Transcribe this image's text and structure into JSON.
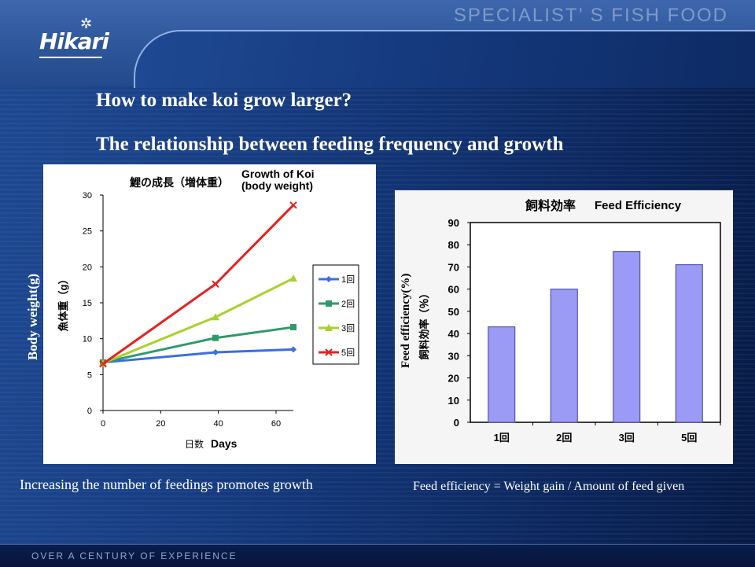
{
  "header": {
    "brand": "Hikari",
    "tagline": "SPECIALIST’ S FISH FOOD"
  },
  "titles": {
    "question": "How to make koi grow larger?",
    "subtitle": "The relationship between feeding frequency and growth"
  },
  "captions": {
    "left": "Increasing the number of feedings promotes growth",
    "right": "Feed efficiency = Weight gain / Amount of feed given"
  },
  "footer": {
    "text": "OVER A CENTURY OF EXPERIENCE"
  },
  "side_labels": {
    "left_en": "Body weight(g)",
    "right_en": "Feed efficiency(%)"
  },
  "colors": {
    "series": [
      "#3a6fe0",
      "#2e9a6b",
      "#a8d12a",
      "#e82020"
    ],
    "bar_fill": "#9b9bf5",
    "bar_stroke": "#4040a0"
  },
  "chart_data": [
    {
      "type": "line",
      "title": "鯉の成長（増体重）",
      "title_en_line1": "Growth of Koi",
      "title_en_line2": "(body weight)",
      "xlabel": "日数",
      "xlabel_en": "Days",
      "ylabel": "魚体重（g）",
      "xlim": [
        0,
        66
      ],
      "ylim": [
        0,
        30
      ],
      "xticks": [
        "0",
        "20",
        "40",
        "60"
      ],
      "yticks": [
        "0",
        "5",
        "10",
        "15",
        "20",
        "25",
        "30"
      ],
      "grid": false,
      "legend_position": "right",
      "series": [
        {
          "name": "1回",
          "x": [
            0,
            39,
            66
          ],
          "y": [
            6.7,
            8.1,
            8.5
          ]
        },
        {
          "name": "2回",
          "x": [
            0,
            39,
            66
          ],
          "y": [
            6.7,
            10.1,
            11.6
          ]
        },
        {
          "name": "3回",
          "x": [
            0,
            39,
            66
          ],
          "y": [
            6.6,
            13.0,
            18.4
          ]
        },
        {
          "name": "5回",
          "x": [
            0,
            39,
            66
          ],
          "y": [
            6.5,
            17.6,
            28.6
          ]
        }
      ]
    },
    {
      "type": "bar",
      "title": "飼料効率",
      "title_en": "Feed Efficiency",
      "ylabel": "飼料効率（％）",
      "categories": [
        "1回",
        "2回",
        "3回",
        "5回"
      ],
      "values": [
        43,
        60,
        77,
        71
      ],
      "ylim": [
        0,
        90
      ],
      "yticks": [
        "0",
        "10",
        "20",
        "30",
        "40",
        "50",
        "60",
        "70",
        "80",
        "90"
      ],
      "grid": false
    }
  ]
}
